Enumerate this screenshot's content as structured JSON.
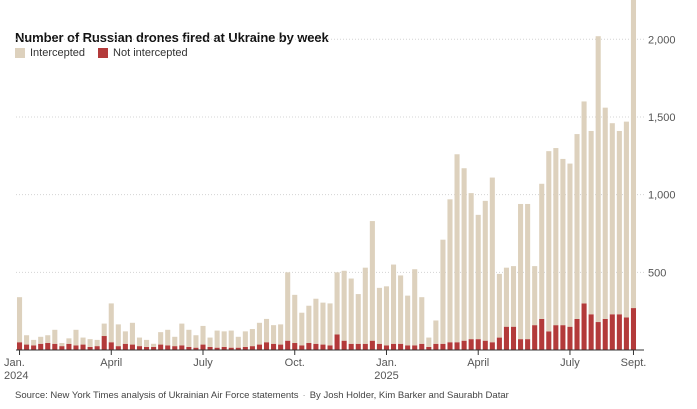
{
  "chart_data": {
    "type": "bar",
    "stacked": true,
    "title": "Number of Russian drones fired at Ukraine by week",
    "xlabel": "",
    "ylabel": "",
    "ylim": [
      0,
      2150
    ],
    "y_ticks": [
      500,
      1000,
      1500,
      2000
    ],
    "y_tick_labels": [
      "500",
      "1,000",
      "1,500",
      "2,000"
    ],
    "x_tick_labels": [
      {
        "index": 0,
        "line1": "Jan.",
        "line2": "2024"
      },
      {
        "index": 13,
        "line1": "April",
        "line2": ""
      },
      {
        "index": 26,
        "line1": "July",
        "line2": ""
      },
      {
        "index": 39,
        "line1": "Oct.",
        "line2": ""
      },
      {
        "index": 52,
        "line1": "Jan.",
        "line2": "2025"
      },
      {
        "index": 65,
        "line1": "April",
        "line2": ""
      },
      {
        "index": 78,
        "line1": "July",
        "line2": ""
      },
      {
        "index": 87,
        "line1": "Sept.",
        "line2": ""
      }
    ],
    "grid": true,
    "legend_position": "top-left",
    "colors": {
      "intercepted": "#ddd1bd",
      "not_intercepted": "#b33a3a"
    },
    "series": [
      {
        "name": "Intercepted",
        "values": [
          290,
          60,
          35,
          45,
          50,
          90,
          20,
          35,
          100,
          45,
          50,
          40,
          80,
          250,
          140,
          80,
          140,
          55,
          45,
          20,
          80,
          100,
          60,
          140,
          110,
          80,
          120,
          60,
          110,
          100,
          110,
          70,
          100,
          110,
          140,
          150,
          120,
          130,
          440,
          310,
          210,
          240,
          290,
          270,
          270,
          400,
          450,
          420,
          320,
          490,
          770,
          360,
          380,
          510,
          440,
          320,
          490,
          300,
          60,
          150,
          670,
          920,
          1210,
          1110,
          940,
          800,
          900,
          1060,
          410,
          380,
          390,
          870,
          870,
          380,
          870,
          1160,
          1140,
          1070,
          1050,
          1190,
          1300,
          1180,
          1840,
          1360,
          1230,
          1180,
          1260,
          2000
        ]
      },
      {
        "name": "Not intercepted",
        "values": [
          50,
          35,
          30,
          40,
          45,
          40,
          25,
          40,
          30,
          35,
          20,
          25,
          90,
          50,
          25,
          40,
          35,
          25,
          20,
          20,
          35,
          30,
          25,
          30,
          20,
          15,
          35,
          20,
          15,
          20,
          15,
          15,
          20,
          25,
          35,
          50,
          40,
          35,
          60,
          45,
          30,
          45,
          40,
          35,
          30,
          100,
          60,
          40,
          40,
          40,
          60,
          40,
          30,
          40,
          40,
          30,
          30,
          40,
          20,
          40,
          40,
          50,
          50,
          60,
          70,
          70,
          60,
          50,
          80,
          150,
          150,
          70,
          70,
          160,
          200,
          120,
          160,
          160,
          150,
          200,
          300,
          230,
          180,
          200,
          230,
          230,
          210,
          270
        ]
      }
    ]
  },
  "legend": {
    "intercepted_label": "Intercepted",
    "not_intercepted_label": "Not intercepted"
  },
  "source": {
    "text": "Source: New York Times analysis of Ukrainian Air Force statements",
    "byline": "By Josh Holder, Kim Barker and Saurabh Datar"
  }
}
